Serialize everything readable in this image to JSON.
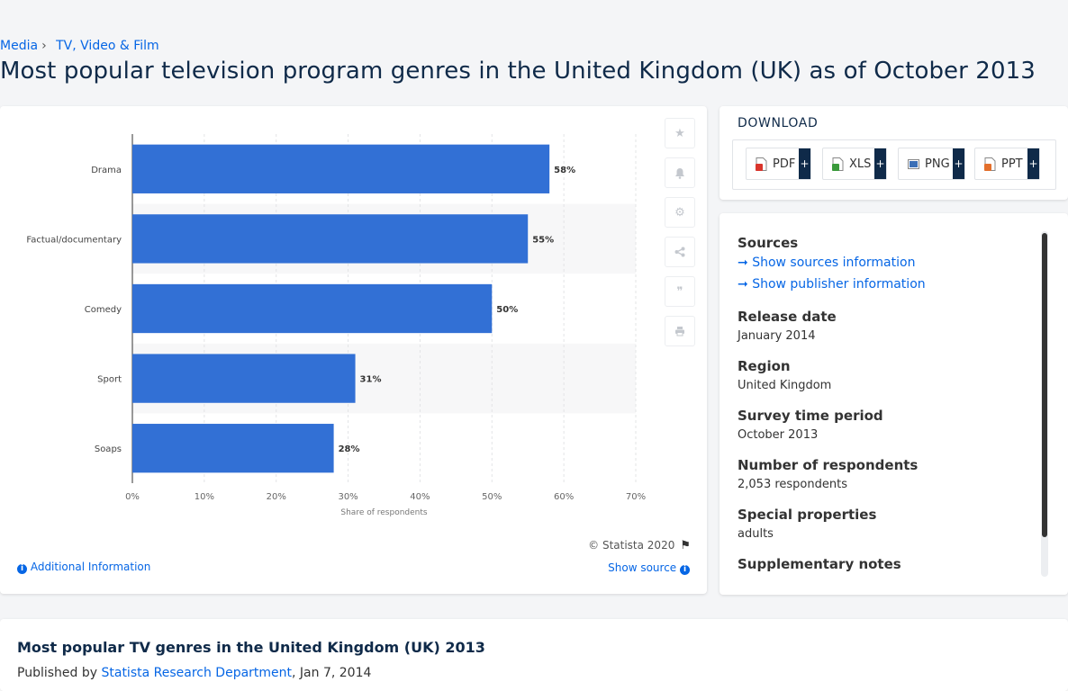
{
  "breadcrumb": {
    "items": [
      "Media",
      "TV, Video & Film"
    ]
  },
  "page_title": "Most popular television program genres in the United Kingdom (UK) as of October 2013",
  "chart_data": {
    "type": "bar",
    "orientation": "horizontal",
    "categories": [
      "Drama",
      "Factual/documentary",
      "Comedy",
      "Sport",
      "Soaps"
    ],
    "values": [
      58,
      55,
      50,
      31,
      28
    ],
    "data_labels": [
      "58%",
      "55%",
      "50%",
      "31%",
      "28%"
    ],
    "xlabel": "Share of respondents",
    "x_ticks": [
      "0%",
      "10%",
      "20%",
      "30%",
      "40%",
      "50%",
      "60%",
      "70%"
    ],
    "xlim": [
      0,
      70
    ],
    "bar_color": "#3270d5",
    "grid": true,
    "legend": false
  },
  "chart_footer": {
    "copyright": "© Statista 2020",
    "additional_info": "Additional Information",
    "show_source": "Show source"
  },
  "download": {
    "title": "DOWNLOAD",
    "buttons": [
      {
        "label": "PDF",
        "icon": "pdf-file-icon",
        "color": "#d9342b"
      },
      {
        "label": "XLS",
        "icon": "xls-file-icon",
        "color": "#3a9a3b"
      },
      {
        "label": "PNG",
        "icon": "png-file-icon",
        "color": "#3b6fb6"
      },
      {
        "label": "PPT",
        "icon": "ppt-file-icon",
        "color": "#e36f2c"
      }
    ],
    "plus": "+"
  },
  "info": {
    "sources_label": "Sources",
    "show_sources": "Show sources information",
    "show_publisher": "Show publisher information",
    "release_date_label": "Release date",
    "release_date": "January 2014",
    "region_label": "Region",
    "region": "United Kingdom",
    "survey_period_label": "Survey time period",
    "survey_period": "October 2013",
    "respondents_label": "Number of respondents",
    "respondents": "2,053 respondents",
    "special_label": "Special properties",
    "special": "adults",
    "supplementary_label": "Supplementary notes"
  },
  "bottom": {
    "title": "Most popular TV genres in the United Kingdom (UK) 2013",
    "published_prefix": "Published by",
    "publisher": "Statista Research Department",
    "date": ", Jan 7, 2014"
  },
  "colors": {
    "accent": "#0666e5",
    "navy": "#0f2a49",
    "bar": "#3270d5"
  }
}
